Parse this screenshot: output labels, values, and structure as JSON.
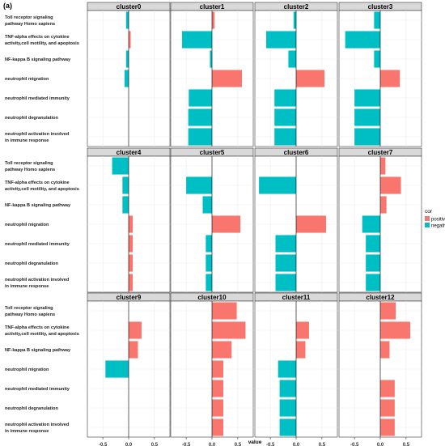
{
  "figure_label": "(a)",
  "chart_data": {
    "type": "bar",
    "orientation": "horizontal",
    "categories": [
      "Toll receptor signaling pathway Homo sapiens",
      "TNF-alpha effects on cytokine activity,cell motility, and apoptosis",
      "NF-kappa B signaling pathway",
      "neutrophil migration",
      "neutrophil mediated immunity",
      "neutrophil degranulation",
      "neutrophil activation involved in immune response"
    ],
    "category_lines": [
      [
        "Toll receptor signaling",
        "pathway Homo sapiens"
      ],
      [
        "TNF-alpha effects on cytokine",
        "activity,cell motility, and apoptosis"
      ],
      [
        "NF-kappa B signaling pathway"
      ],
      [
        "neutrophil migration"
      ],
      [
        "neutrophil mediated immunity"
      ],
      [
        "neutrophil degranulation"
      ],
      [
        "neutrophil activation involved",
        "in immune response"
      ]
    ],
    "xlabel": "value",
    "xlim": [
      -0.8,
      0.8
    ],
    "xticks": [
      -0.5,
      0.0,
      0.5
    ],
    "xtick_labels": [
      "-0.5",
      "0.0",
      "0.5"
    ],
    "grid": true,
    "legend": {
      "title": "cor",
      "entries": [
        "positive",
        "negative"
      ],
      "colors": [
        "#f8766d",
        "#00bfc4"
      ],
      "placement": "right"
    },
    "panels": [
      {
        "name": "cluster0",
        "values": [
          -0.05,
          0.04,
          -0.05,
          -0.08,
          0.0,
          0.0,
          0.0
        ]
      },
      {
        "name": "cluster1",
        "values": [
          0.05,
          -0.58,
          -0.04,
          0.58,
          -0.45,
          -0.46,
          -0.46
        ]
      },
      {
        "name": "cluster2",
        "values": [
          -0.05,
          -0.58,
          -0.15,
          0.55,
          -0.42,
          -0.42,
          -0.42
        ]
      },
      {
        "name": "cluster3",
        "values": [
          -0.12,
          -0.68,
          -0.12,
          0.38,
          -0.5,
          -0.5,
          -0.5
        ]
      },
      {
        "name": "cluster4",
        "values": [
          -0.32,
          -0.12,
          -0.12,
          0.08,
          0.08,
          0.08,
          0.08
        ]
      },
      {
        "name": "cluster5",
        "values": [
          0.0,
          -0.5,
          -0.18,
          0.55,
          -0.12,
          -0.12,
          -0.12
        ]
      },
      {
        "name": "cluster6",
        "values": [
          0.0,
          -0.72,
          0.0,
          0.58,
          -0.4,
          -0.4,
          -0.4
        ]
      },
      {
        "name": "cluster7",
        "values": [
          0.1,
          0.4,
          0.12,
          -0.35,
          -0.28,
          -0.28,
          -0.28
        ]
      },
      {
        "name": "cluster9",
        "values": [
          0.0,
          0.25,
          0.18,
          -0.45,
          0.0,
          0.0,
          0.0
        ]
      },
      {
        "name": "cluster10",
        "values": [
          0.48,
          0.65,
          0.38,
          0.22,
          0.22,
          0.22,
          0.22
        ]
      },
      {
        "name": "cluster11",
        "values": [
          0.0,
          0.25,
          0.18,
          -0.35,
          -0.32,
          -0.32,
          -0.32
        ]
      },
      {
        "name": "cluster12",
        "values": [
          0.3,
          0.58,
          0.18,
          0.0,
          0.28,
          0.28,
          0.28
        ]
      }
    ]
  }
}
